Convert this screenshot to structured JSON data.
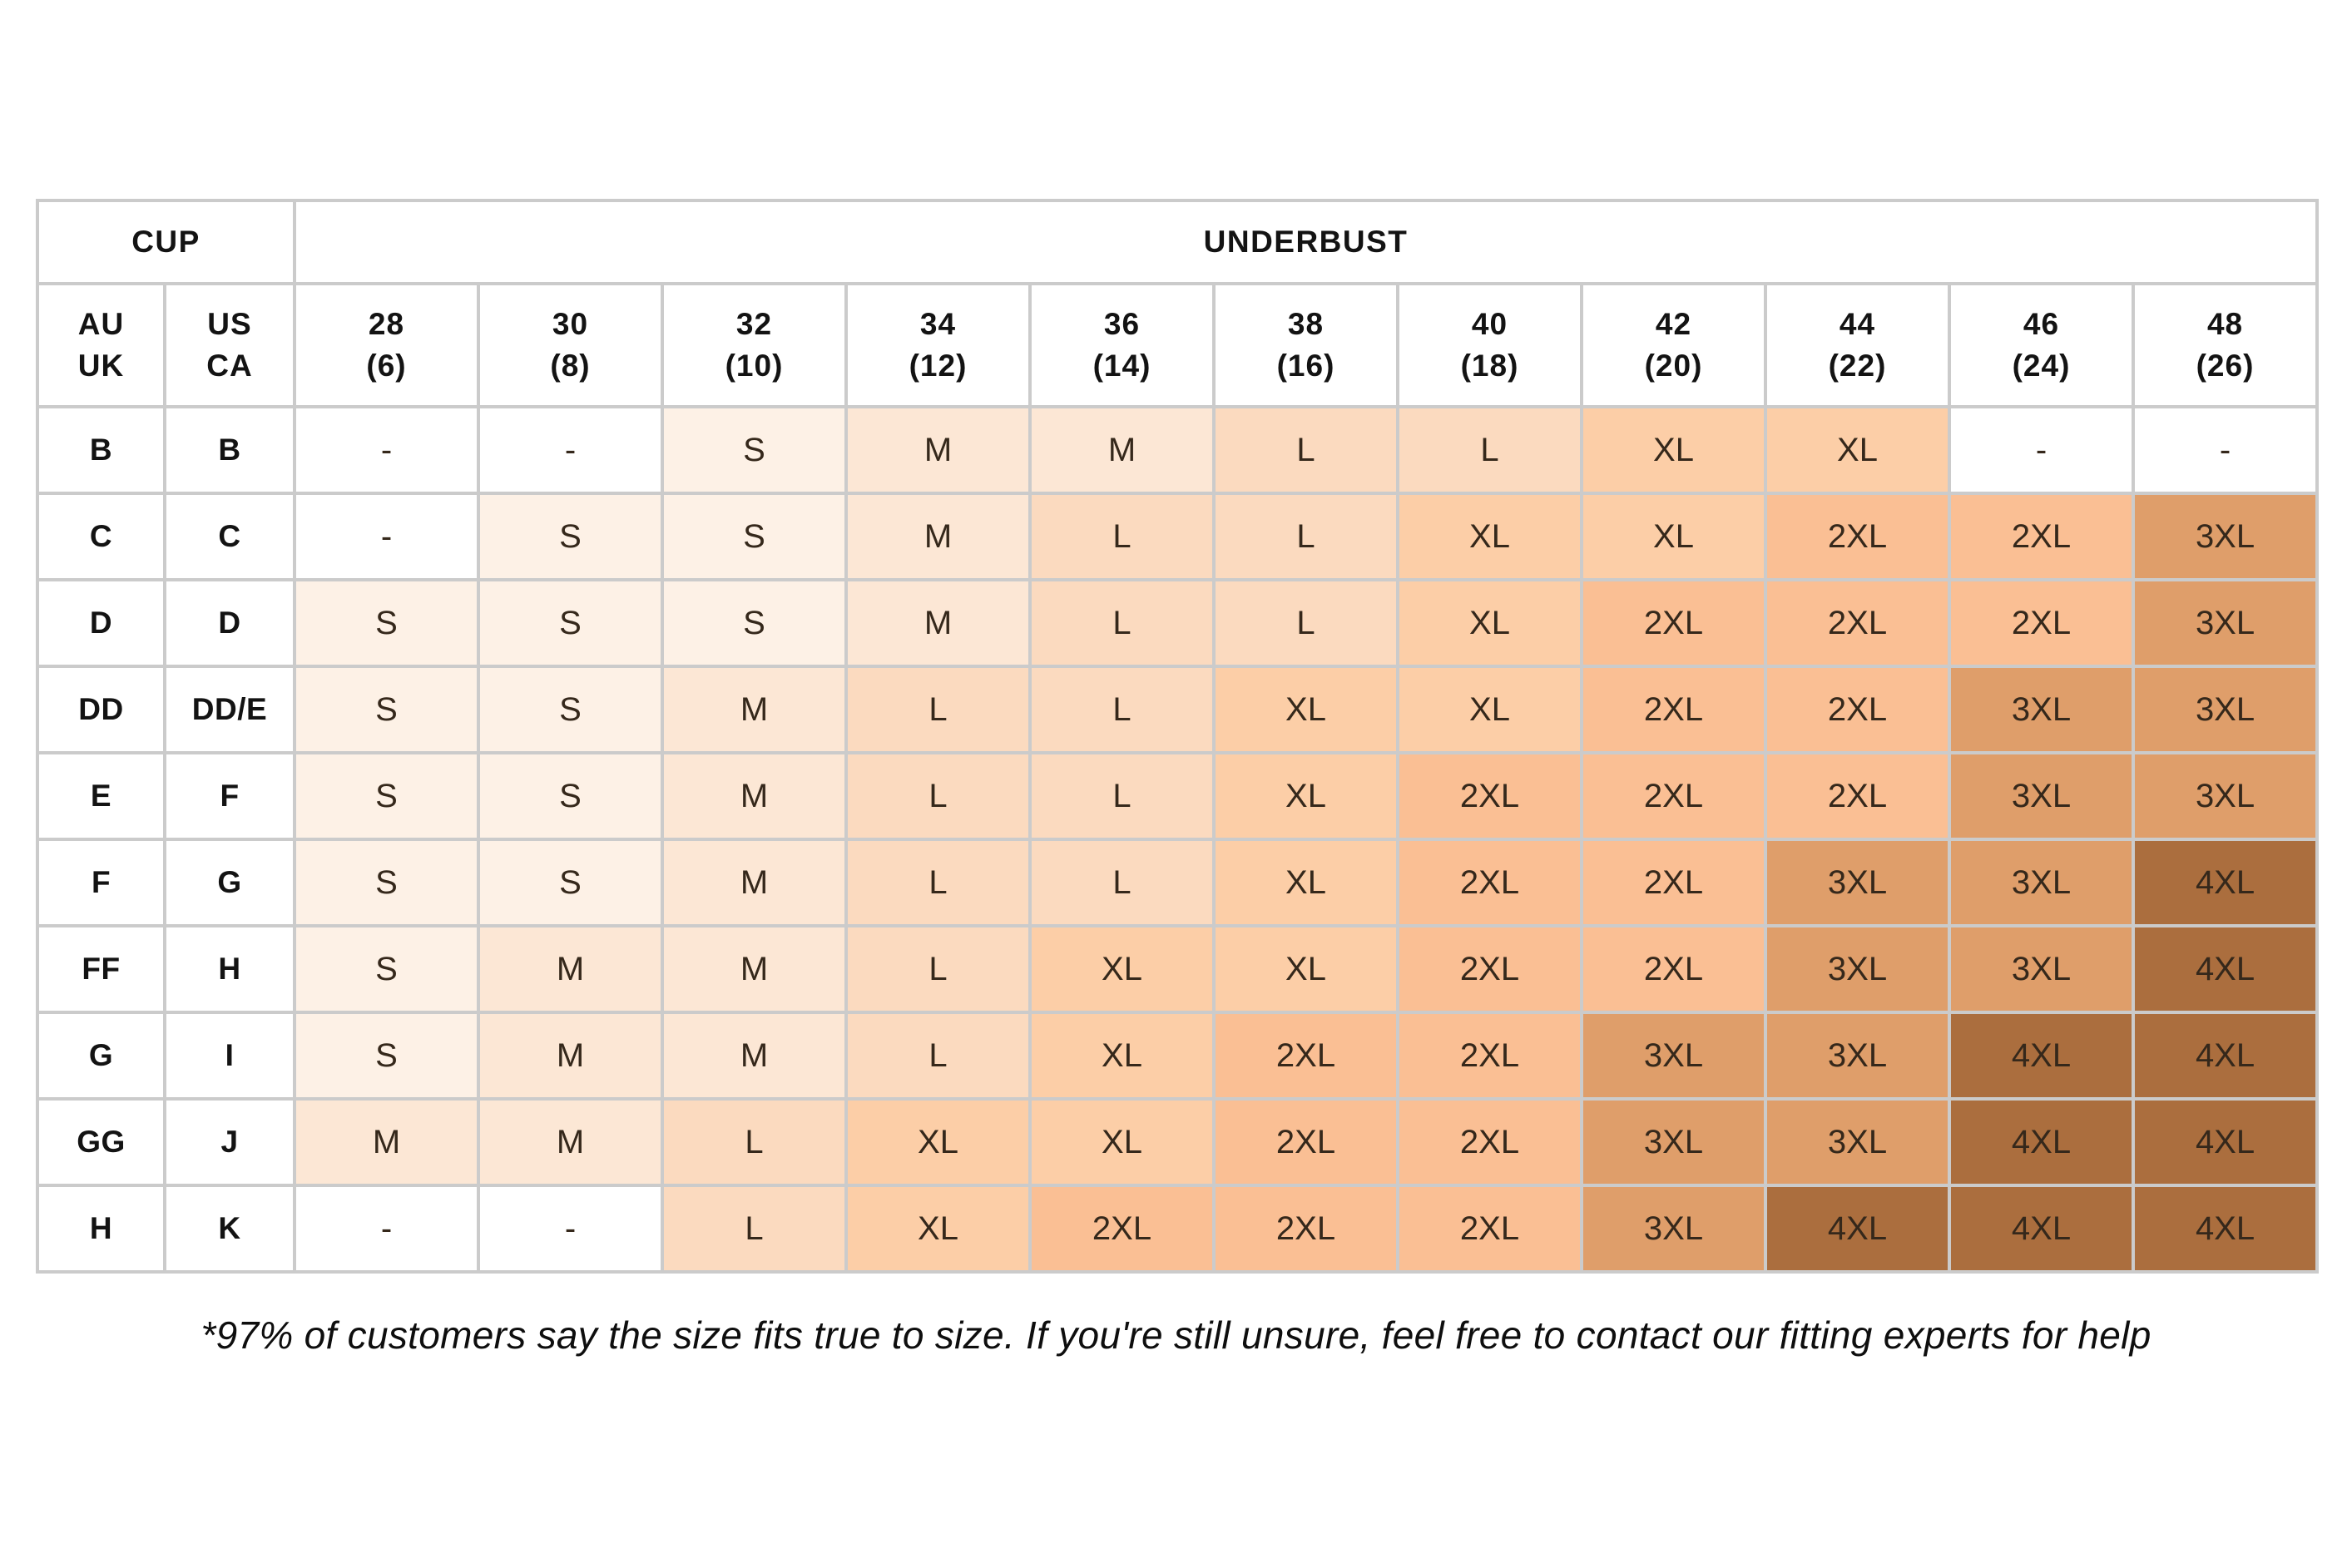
{
  "page": {
    "background": "#ffffff"
  },
  "chart_data": {
    "type": "table",
    "subtype": "heatmap-size-chart",
    "cup_label": "CUP",
    "underbust_label": "UNDERBUST",
    "cup_col_headers": [
      "AU\nUK",
      "US\nCA"
    ],
    "columns": [
      {
        "underbust": "28",
        "dress": "(6)"
      },
      {
        "underbust": "30",
        "dress": "(8)"
      },
      {
        "underbust": "32",
        "dress": "(10)"
      },
      {
        "underbust": "34",
        "dress": "(12)"
      },
      {
        "underbust": "36",
        "dress": "(14)"
      },
      {
        "underbust": "38",
        "dress": "(16)"
      },
      {
        "underbust": "40",
        "dress": "(18)"
      },
      {
        "underbust": "42",
        "dress": "(20)"
      },
      {
        "underbust": "44",
        "dress": "(22)"
      },
      {
        "underbust": "46",
        "dress": "(24)"
      },
      {
        "underbust": "48",
        "dress": "(26)"
      }
    ],
    "rows": [
      {
        "au_uk": "B",
        "us_ca": "B",
        "sizes": [
          "-",
          "-",
          "S",
          "M",
          "M",
          "L",
          "L",
          "XL",
          "XL",
          "-",
          "-"
        ]
      },
      {
        "au_uk": "C",
        "us_ca": "C",
        "sizes": [
          "-",
          "S",
          "S",
          "M",
          "L",
          "L",
          "XL",
          "XL",
          "2XL",
          "2XL",
          "3XL"
        ]
      },
      {
        "au_uk": "D",
        "us_ca": "D",
        "sizes": [
          "S",
          "S",
          "S",
          "M",
          "L",
          "L",
          "XL",
          "2XL",
          "2XL",
          "2XL",
          "3XL"
        ]
      },
      {
        "au_uk": "DD",
        "us_ca": "DD/E",
        "sizes": [
          "S",
          "S",
          "M",
          "L",
          "L",
          "XL",
          "XL",
          "2XL",
          "2XL",
          "3XL",
          "3XL"
        ]
      },
      {
        "au_uk": "E",
        "us_ca": "F",
        "sizes": [
          "S",
          "S",
          "M",
          "L",
          "L",
          "XL",
          "2XL",
          "2XL",
          "2XL",
          "3XL",
          "3XL"
        ]
      },
      {
        "au_uk": "F",
        "us_ca": "G",
        "sizes": [
          "S",
          "S",
          "M",
          "L",
          "L",
          "XL",
          "2XL",
          "2XL",
          "3XL",
          "3XL",
          "4XL"
        ]
      },
      {
        "au_uk": "FF",
        "us_ca": "H",
        "sizes": [
          "S",
          "M",
          "M",
          "L",
          "XL",
          "XL",
          "2XL",
          "2XL",
          "3XL",
          "3XL",
          "4XL"
        ]
      },
      {
        "au_uk": "G",
        "us_ca": "I",
        "sizes": [
          "S",
          "M",
          "M",
          "L",
          "XL",
          "2XL",
          "2XL",
          "3XL",
          "3XL",
          "4XL",
          "4XL"
        ]
      },
      {
        "au_uk": "GG",
        "us_ca": "J",
        "sizes": [
          "M",
          "M",
          "L",
          "XL",
          "XL",
          "2XL",
          "2XL",
          "3XL",
          "3XL",
          "4XL",
          "4XL"
        ]
      },
      {
        "au_uk": "H",
        "us_ca": "K",
        "sizes": [
          "-",
          "-",
          "L",
          "XL",
          "2XL",
          "2XL",
          "2XL",
          "3XL",
          "4XL",
          "4XL",
          "4XL"
        ]
      }
    ],
    "value_colors": {
      "-": "#ffffff",
      "S": "#fdf1e6",
      "M": "#fce7d5",
      "L": "#fbdabf",
      "XL": "#fccea7",
      "2XL": "#fabf94",
      "3XL": "#df9e6a",
      "4XL": "#ab6e3e"
    },
    "grid_color": "#cbcbcb",
    "legend_position": "none"
  },
  "footnote": "*97% of customers say the size fits true to size. If you're still unsure, feel free to contact our fitting experts for help"
}
